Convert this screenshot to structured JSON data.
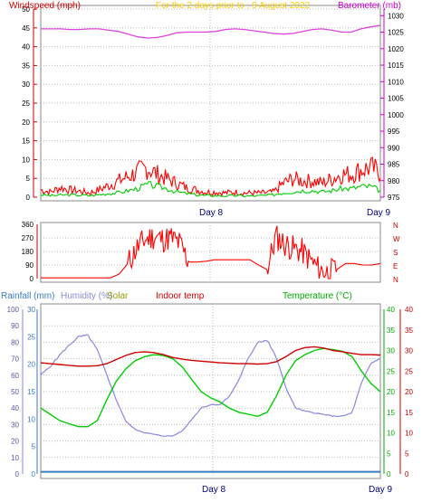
{
  "header": {
    "windspeed_label": "Windspeed (mph)",
    "period_label": "For the 2 days prior to : 9 August 2022",
    "barometer_label": "Barometer (mb)"
  },
  "legend": {
    "rainfall": "Rainfall (mm)",
    "humidity": "Humidity (%)",
    "solar": "Solar",
    "indoor": "Indoor temp",
    "temperature": "Temperature (°C)"
  },
  "colors": {
    "windspeed": "#ff0000",
    "gust": "#00cc00",
    "barometer": "#dd44dd",
    "direction": "#ff0000",
    "rainfall": "#3a7ac0",
    "humidity": "#8888dd",
    "solar": "#999900",
    "indoor": "#cc0000",
    "temperature": "#00cc00",
    "grid": "#bbbbbb",
    "title": "#ffcc00"
  },
  "chart_data": [
    {
      "type": "line",
      "panel": "wind-barometer",
      "x_labels": [
        "Day 8",
        "Day 9"
      ],
      "y_left": {
        "label": "Windspeed (mph)",
        "ylim": [
          0,
          50
        ],
        "ticks": [
          "0",
          "5",
          "10",
          "15",
          "20",
          "25",
          "30",
          "35",
          "40",
          "45",
          "50"
        ]
      },
      "y_right": {
        "label": "Barometer (mb)",
        "ylim": [
          975,
          1032
        ],
        "ticks": [
          "975",
          "980",
          "985",
          "990",
          "995",
          "1000",
          "1005",
          "1010",
          "1015",
          "1020",
          "1025",
          "1030"
        ]
      },
      "grid": true,
      "series": [
        {
          "name": "Windspeed (mph)",
          "axis": "left",
          "values": [
            1.5,
            1.0,
            2.0,
            1.5,
            1.2,
            0.8,
            1.5,
            2.5,
            3.5,
            4.5,
            5.5,
            6.5,
            5.0,
            4.0,
            3.0,
            2.0,
            1.5,
            1.0,
            1.0,
            0.8,
            1.0,
            0.8,
            0.8,
            0.8,
            1.0,
            3.0,
            4.0,
            3.5,
            3.5,
            3.0,
            4.0,
            5.0,
            5.0,
            6.0,
            6.5,
            5.5
          ]
        },
        {
          "name": "Gust",
          "axis": "left",
          "values": [
            0.5,
            0.3,
            0.4,
            0.5,
            0.4,
            0.3,
            0.5,
            0.8,
            1.0,
            1.5,
            2.0,
            3.0,
            2.5,
            2.0,
            1.2,
            0.8,
            0.5,
            0.3,
            0.3,
            0.2,
            0.3,
            0.2,
            0.2,
            0.3,
            0.5,
            1.0,
            1.2,
            1.5,
            1.5,
            1.2,
            1.5,
            2.0,
            2.0,
            2.5,
            2.5,
            1.5
          ]
        },
        {
          "name": "Barometer (mb)",
          "axis": "right",
          "values": [
            1026,
            1026,
            1026,
            1025.8,
            1025.8,
            1026,
            1026,
            1025.6,
            1025.2,
            1024.4,
            1023.6,
            1023.2,
            1023.4,
            1024.0,
            1024.8,
            1025.0,
            1025.0,
            1025.0,
            1025.2,
            1025.8,
            1026.0,
            1025.8,
            1025.4,
            1025.0,
            1024.6,
            1024.4,
            1024.6,
            1025.2,
            1025.8,
            1026.0,
            1025.6,
            1025.0,
            1025.0,
            1026.0,
            1026.6,
            1027.0
          ]
        }
      ]
    },
    {
      "type": "line",
      "panel": "wind-direction",
      "y_left": {
        "ylim": [
          0,
          360
        ],
        "ticks": [
          "0",
          "90",
          "180",
          "270",
          "360"
        ]
      },
      "y_right": {
        "ticks": [
          "N",
          "E",
          "S",
          "W",
          "N"
        ]
      },
      "grid": true,
      "series": [
        {
          "name": "Wind direction",
          "values": [
            5,
            5,
            5,
            5,
            5,
            5,
            5,
            5,
            5,
            30,
            100,
            200,
            260,
            280,
            260,
            270,
            230,
            110,
            110,
            115,
            125,
            125,
            125,
            125,
            125,
            90,
            60,
            280,
            230,
            200,
            180,
            120,
            60,
            40,
            60,
            100,
            100,
            90,
            90,
            100
          ]
        }
      ]
    },
    {
      "type": "line",
      "panel": "temperature-humidity",
      "x_labels": [
        "Day 8",
        "Day 9"
      ],
      "y_outer": {
        "label": "Humidity (%)",
        "ylim": [
          0,
          100
        ],
        "ticks": [
          "0",
          "10",
          "20",
          "30",
          "40",
          "50",
          "60",
          "70",
          "80",
          "90",
          "100"
        ]
      },
      "y_inner": {
        "label": "Rainfall (mm)",
        "ylim": [
          0,
          30
        ],
        "ticks": [
          "0",
          "5",
          "10",
          "15",
          "20",
          "25",
          "30"
        ]
      },
      "y_right_inner": {
        "label": "Temperature (°C)",
        "ylim": [
          0,
          40
        ],
        "ticks": [
          "0",
          "5",
          "10",
          "15",
          "20",
          "25",
          "30",
          "35",
          "40"
        ]
      },
      "y_right_outer": {
        "label": "Indoor temp",
        "ylim": [
          0,
          40
        ],
        "ticks": [
          "0",
          "5",
          "10",
          "15",
          "20",
          "25",
          "30",
          "35",
          "40"
        ]
      },
      "grid": true,
      "series": [
        {
          "name": "Humidity (%)",
          "axis": "outer",
          "values": [
            60,
            65,
            72,
            78,
            83,
            84,
            75,
            60,
            45,
            32,
            27,
            25,
            24,
            23,
            23,
            26,
            33,
            40,
            42,
            42,
            47,
            57,
            70,
            80,
            81,
            70,
            52,
            40,
            38,
            37,
            36,
            35,
            35,
            37,
            55,
            67,
            70
          ]
        },
        {
          "name": "Indoor temp",
          "axis": "right_outer",
          "values": [
            27.0,
            26.8,
            26.6,
            26.4,
            26.2,
            26.2,
            26.3,
            26.8,
            27.8,
            28.8,
            29.5,
            29.7,
            29.5,
            29.0,
            28.3,
            27.9,
            27.6,
            27.4,
            27.2,
            27.0,
            26.9,
            26.8,
            26.8,
            26.7,
            26.8,
            27.3,
            28.5,
            30.0,
            30.7,
            30.9,
            30.6,
            30.0,
            29.7,
            29.3,
            29.0,
            29.0,
            28.9
          ]
        },
        {
          "name": "Temperature (°C)",
          "axis": "right_inner",
          "values": [
            16.0,
            14.5,
            13.0,
            12.2,
            11.5,
            11.5,
            13.0,
            18.0,
            22.5,
            25.5,
            27.5,
            28.5,
            29.0,
            28.8,
            28.0,
            26.0,
            23.0,
            20.0,
            18.5,
            17.5,
            16.0,
            15.0,
            14.5,
            14.0,
            15.0,
            19.0,
            24.0,
            27.5,
            29.0,
            30.0,
            30.5,
            30.2,
            29.8,
            28.5,
            25.0,
            22.0,
            20.0
          ]
        },
        {
          "name": "Rainfall (mm)",
          "axis": "inner",
          "values": [
            0.4,
            0.4,
            0.4,
            0.4,
            0.4,
            0.4,
            0.4,
            0.4,
            0.4,
            0.4,
            0.4,
            0.4,
            0.4,
            0.4,
            0.4,
            0.4,
            0.4,
            0.4,
            0.4,
            0.4,
            0.4,
            0.4,
            0.4,
            0.4,
            0.4,
            0.4,
            0.4,
            0.4,
            0.4,
            0.4,
            0.4,
            0.4,
            0.4,
            0.4,
            0.4,
            0.4,
            0.4
          ]
        }
      ]
    }
  ]
}
